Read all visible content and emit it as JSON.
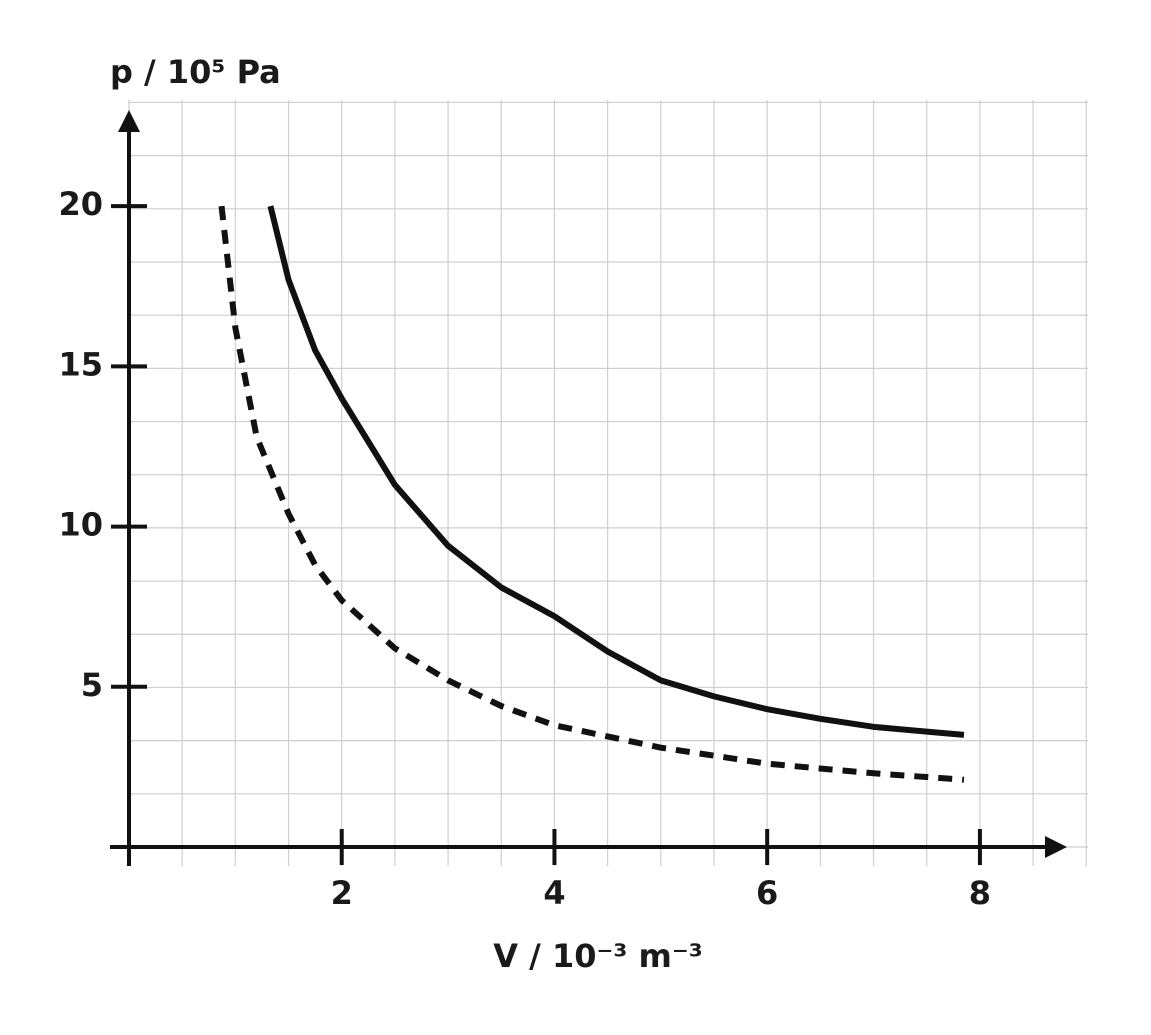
{
  "chart_data": {
    "type": "line",
    "ylabel": "p / 10⁵ Pa",
    "xlabel": "V / 10⁻³ m⁻³",
    "xlim": [
      0,
      8.8
    ],
    "xticks": [
      2,
      4,
      6,
      8
    ],
    "ylim": [
      0,
      23
    ],
    "yticks": [
      5,
      10,
      15,
      20
    ],
    "grid": true,
    "series": [
      {
        "color": "#111111",
        "style": "solid",
        "x": [
          1.33,
          1.5,
          1.75,
          2,
          2.5,
          3,
          3.5,
          4,
          4.5,
          5,
          5.5,
          6,
          6.5,
          7,
          7.5,
          7.85
        ],
        "values": [
          20,
          17.7,
          15.5,
          14,
          11.3,
          9.4,
          8.1,
          7.2,
          6.1,
          5.2,
          4.7,
          4.3,
          4.0,
          3.75,
          3.6,
          3.5
        ]
      },
      {
        "color": "#111111",
        "style": "dashed",
        "x": [
          0.87,
          1,
          1.2,
          1.5,
          1.75,
          2,
          2.5,
          3,
          3.5,
          4,
          5,
          6,
          7,
          7.85
        ],
        "values": [
          20,
          16.2,
          12.8,
          10.4,
          8.8,
          7.7,
          6.2,
          5.2,
          4.4,
          3.8,
          3.1,
          2.6,
          2.3,
          2.1
        ]
      }
    ]
  }
}
